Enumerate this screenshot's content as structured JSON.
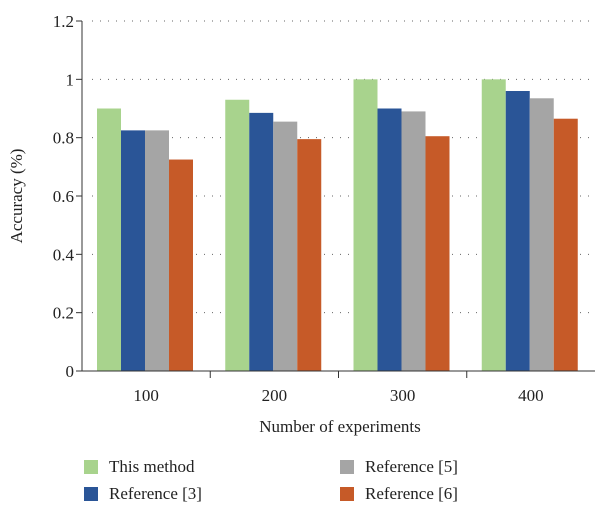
{
  "chart_data": {
    "type": "bar",
    "title": "",
    "xlabel": "Number of experiments",
    "ylabel": "Accuracy (%)",
    "categories": [
      "100",
      "200",
      "300",
      "400"
    ],
    "ylim": [
      0,
      1.2
    ],
    "yticks": [
      "0",
      "0.2",
      "0.4",
      "0.6",
      "0.8",
      "1",
      "1.2"
    ],
    "grid": "dotted horizontal",
    "legend_position": "bottom",
    "series": [
      {
        "name": "This method",
        "color": "#a8d38d",
        "values": [
          0.9,
          0.93,
          1.0,
          1.0
        ]
      },
      {
        "name": "Reference [3]",
        "color": "#2a5597",
        "values": [
          0.825,
          0.885,
          0.9,
          0.96
        ]
      },
      {
        "name": "Reference [5]",
        "color": "#a5a5a5",
        "values": [
          0.825,
          0.855,
          0.89,
          0.935
        ]
      },
      {
        "name": "Reference [6]",
        "color": "#c65a28",
        "values": [
          0.725,
          0.795,
          0.805,
          0.865
        ]
      }
    ]
  }
}
